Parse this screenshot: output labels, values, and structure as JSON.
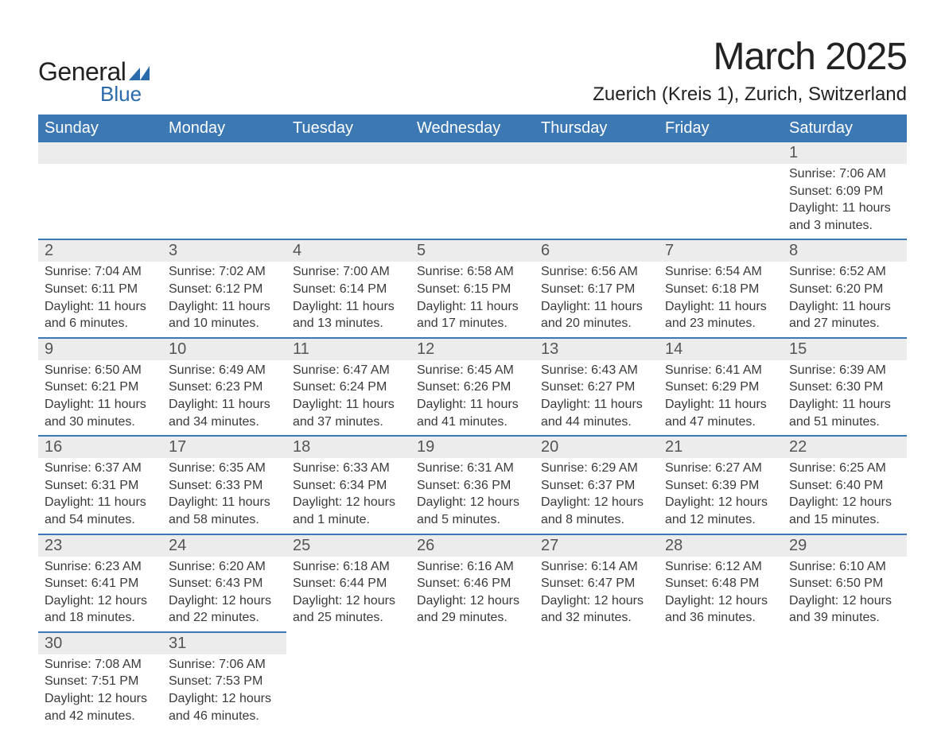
{
  "logo": {
    "top": "General",
    "bottom": "Blue",
    "brand_color": "#2b6aab"
  },
  "title": "March 2025",
  "location": "Zuerich (Kreis 1), Zurich, Switzerland",
  "header_bg": "#3c78b4",
  "header_fg": "#ffffff",
  "stripe_bg": "#ececec",
  "row_border": "#3c78b4",
  "text_color": "#3a3a3a",
  "days_of_week": [
    "Sunday",
    "Monday",
    "Tuesday",
    "Wednesday",
    "Thursday",
    "Friday",
    "Saturday"
  ],
  "weeks": [
    [
      null,
      null,
      null,
      null,
      null,
      null,
      {
        "n": "1",
        "sunrise": "7:06 AM",
        "sunset": "6:09 PM",
        "daylight": "11 hours and 3 minutes."
      }
    ],
    [
      {
        "n": "2",
        "sunrise": "7:04 AM",
        "sunset": "6:11 PM",
        "daylight": "11 hours and 6 minutes."
      },
      {
        "n": "3",
        "sunrise": "7:02 AM",
        "sunset": "6:12 PM",
        "daylight": "11 hours and 10 minutes."
      },
      {
        "n": "4",
        "sunrise": "7:00 AM",
        "sunset": "6:14 PM",
        "daylight": "11 hours and 13 minutes."
      },
      {
        "n": "5",
        "sunrise": "6:58 AM",
        "sunset": "6:15 PM",
        "daylight": "11 hours and 17 minutes."
      },
      {
        "n": "6",
        "sunrise": "6:56 AM",
        "sunset": "6:17 PM",
        "daylight": "11 hours and 20 minutes."
      },
      {
        "n": "7",
        "sunrise": "6:54 AM",
        "sunset": "6:18 PM",
        "daylight": "11 hours and 23 minutes."
      },
      {
        "n": "8",
        "sunrise": "6:52 AM",
        "sunset": "6:20 PM",
        "daylight": "11 hours and 27 minutes."
      }
    ],
    [
      {
        "n": "9",
        "sunrise": "6:50 AM",
        "sunset": "6:21 PM",
        "daylight": "11 hours and 30 minutes."
      },
      {
        "n": "10",
        "sunrise": "6:49 AM",
        "sunset": "6:23 PM",
        "daylight": "11 hours and 34 minutes."
      },
      {
        "n": "11",
        "sunrise": "6:47 AM",
        "sunset": "6:24 PM",
        "daylight": "11 hours and 37 minutes."
      },
      {
        "n": "12",
        "sunrise": "6:45 AM",
        "sunset": "6:26 PM",
        "daylight": "11 hours and 41 minutes."
      },
      {
        "n": "13",
        "sunrise": "6:43 AM",
        "sunset": "6:27 PM",
        "daylight": "11 hours and 44 minutes."
      },
      {
        "n": "14",
        "sunrise": "6:41 AM",
        "sunset": "6:29 PM",
        "daylight": "11 hours and 47 minutes."
      },
      {
        "n": "15",
        "sunrise": "6:39 AM",
        "sunset": "6:30 PM",
        "daylight": "11 hours and 51 minutes."
      }
    ],
    [
      {
        "n": "16",
        "sunrise": "6:37 AM",
        "sunset": "6:31 PM",
        "daylight": "11 hours and 54 minutes."
      },
      {
        "n": "17",
        "sunrise": "6:35 AM",
        "sunset": "6:33 PM",
        "daylight": "11 hours and 58 minutes."
      },
      {
        "n": "18",
        "sunrise": "6:33 AM",
        "sunset": "6:34 PM",
        "daylight": "12 hours and 1 minute."
      },
      {
        "n": "19",
        "sunrise": "6:31 AM",
        "sunset": "6:36 PM",
        "daylight": "12 hours and 5 minutes."
      },
      {
        "n": "20",
        "sunrise": "6:29 AM",
        "sunset": "6:37 PM",
        "daylight": "12 hours and 8 minutes."
      },
      {
        "n": "21",
        "sunrise": "6:27 AM",
        "sunset": "6:39 PM",
        "daylight": "12 hours and 12 minutes."
      },
      {
        "n": "22",
        "sunrise": "6:25 AM",
        "sunset": "6:40 PM",
        "daylight": "12 hours and 15 minutes."
      }
    ],
    [
      {
        "n": "23",
        "sunrise": "6:23 AM",
        "sunset": "6:41 PM",
        "daylight": "12 hours and 18 minutes."
      },
      {
        "n": "24",
        "sunrise": "6:20 AM",
        "sunset": "6:43 PM",
        "daylight": "12 hours and 22 minutes."
      },
      {
        "n": "25",
        "sunrise": "6:18 AM",
        "sunset": "6:44 PM",
        "daylight": "12 hours and 25 minutes."
      },
      {
        "n": "26",
        "sunrise": "6:16 AM",
        "sunset": "6:46 PM",
        "daylight": "12 hours and 29 minutes."
      },
      {
        "n": "27",
        "sunrise": "6:14 AM",
        "sunset": "6:47 PM",
        "daylight": "12 hours and 32 minutes."
      },
      {
        "n": "28",
        "sunrise": "6:12 AM",
        "sunset": "6:48 PM",
        "daylight": "12 hours and 36 minutes."
      },
      {
        "n": "29",
        "sunrise": "6:10 AM",
        "sunset": "6:50 PM",
        "daylight": "12 hours and 39 minutes."
      }
    ],
    [
      {
        "n": "30",
        "sunrise": "7:08 AM",
        "sunset": "7:51 PM",
        "daylight": "12 hours and 42 minutes."
      },
      {
        "n": "31",
        "sunrise": "7:06 AM",
        "sunset": "7:53 PM",
        "daylight": "12 hours and 46 minutes."
      },
      null,
      null,
      null,
      null,
      null
    ]
  ],
  "labels": {
    "sunrise": "Sunrise: ",
    "sunset": "Sunset: ",
    "daylight": "Daylight: "
  }
}
